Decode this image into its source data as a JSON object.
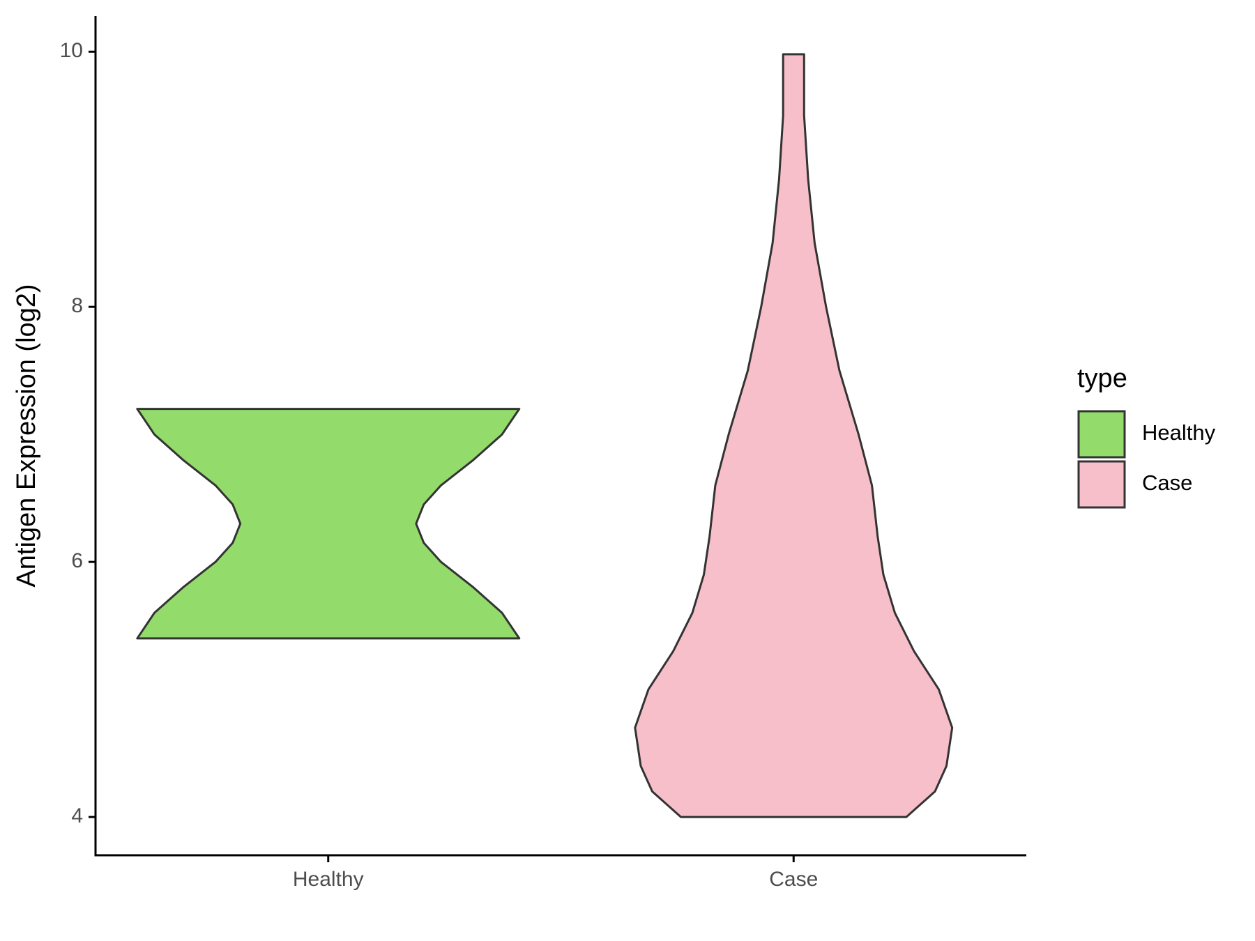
{
  "chart_data": {
    "type": "violin",
    "y_label": "Antigen Expression (log2)",
    "legend_title": "type",
    "categories": [
      "Healthy",
      "Case"
    ],
    "series": [
      {
        "name": "Healthy",
        "color": "#93dc6b",
        "y": [
          5.4,
          5.6,
          5.8,
          6.0,
          6.15,
          6.3,
          6.45,
          6.6,
          6.8,
          7.0,
          7.2
        ],
        "density": [
          1,
          0.91,
          0.76,
          0.59,
          0.5,
          0.46,
          0.5,
          0.59,
          0.76,
          0.91,
          1
        ]
      },
      {
        "name": "Case",
        "color": "#f7bfca",
        "y": [
          4.0,
          4.2,
          4.4,
          4.7,
          5.0,
          5.3,
          5.6,
          5.9,
          6.2,
          6.6,
          7.0,
          7.5,
          8.0,
          8.5,
          9.0,
          9.5,
          9.98
        ],
        "density": [
          0.59,
          0.74,
          0.8,
          0.83,
          0.76,
          0.63,
          0.53,
          0.47,
          0.44,
          0.41,
          0.34,
          0.24,
          0.17,
          0.11,
          0.076,
          0.055,
          0.055
        ]
      }
    ],
    "ylim": [
      3.7,
      10.28
    ],
    "yticks": [
      4,
      6,
      8,
      10
    ]
  }
}
